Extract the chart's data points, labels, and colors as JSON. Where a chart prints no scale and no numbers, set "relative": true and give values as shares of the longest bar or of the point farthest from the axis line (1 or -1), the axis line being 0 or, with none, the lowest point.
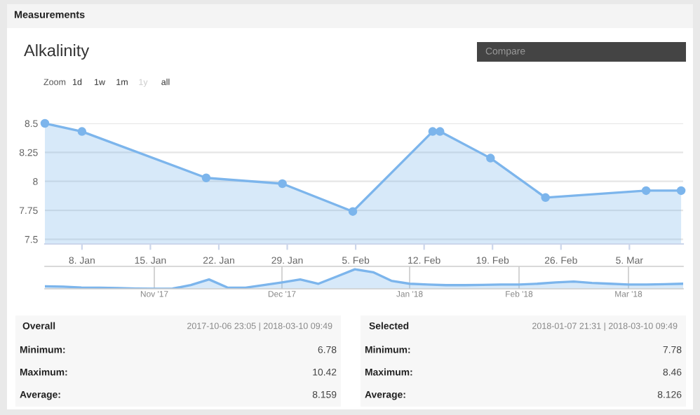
{
  "chart_data": [
    {
      "type": "area",
      "title": "Alkalinity",
      "color": "#7cb5ec",
      "marker": "circle",
      "grid": "y",
      "x": [
        "2018-01-04T05:00",
        "2018-01-08",
        "2018-01-20T17:00",
        "2018-01-28T12:00",
        "2018-02-04T17:00",
        "2018-02-12T21:00",
        "2018-02-13T15:00",
        "2018-02-18T19:00",
        "2018-02-24T10:00",
        "2018-03-06T17:00",
        "2018-03-10T07:00"
      ],
      "values": [
        8.5,
        8.43,
        8.03,
        7.98,
        7.74,
        8.43,
        8.43,
        8.2,
        7.86,
        7.92,
        7.92
      ],
      "xlim": [
        "2018-01-04T05:00",
        "2018-03-10T12:00"
      ],
      "ylim": [
        7.46,
        8.5
      ],
      "xticks": [
        {
          "value": "2018-01-08",
          "label": "8. Jan"
        },
        {
          "value": "2018-01-15",
          "label": "15. Jan"
        },
        {
          "value": "2018-01-22",
          "label": "22. Jan"
        },
        {
          "value": "2018-01-29",
          "label": "29. Jan"
        },
        {
          "value": "2018-02-05",
          "label": "5. Feb"
        },
        {
          "value": "2018-02-12",
          "label": "12. Feb"
        },
        {
          "value": "2018-02-19",
          "label": "19. Feb"
        },
        {
          "value": "2018-02-26",
          "label": "26. Feb"
        },
        {
          "value": "2018-03-05",
          "label": "5. Mar"
        }
      ],
      "yticks": [
        7.5,
        7.75,
        8,
        8.25,
        8.5
      ],
      "annotations": [
        "Measurements",
        "Compare",
        "Zoom",
        "1d",
        "1w",
        "1m",
        "1y",
        "all",
        "Overall",
        "2017-10-06 23:05 | 2018-03-10 09:49",
        "Minimum:",
        "6.78",
        "Maximum:",
        "10.42",
        "Average:",
        "8.159",
        "Selected",
        "2018-01-07 21:31 | 2018-03-10 09:49",
        "Minimum:",
        "7.78",
        "Maximum:",
        "8.46",
        "Average:",
        "8.126"
      ]
    },
    {
      "type": "area",
      "relative": true,
      "color": "#7cb5ec",
      "grid": "x",
      "categories": [
        null,
        null,
        null,
        null,
        null,
        null,
        "Nov '17",
        null,
        null,
        null,
        null,
        null,
        null,
        "Dec '17",
        null,
        null,
        null,
        null,
        null,
        null,
        "Jan '18",
        null,
        null,
        null,
        null,
        null,
        "Feb '18",
        null,
        null,
        null,
        null,
        null,
        "Mar '18",
        null,
        null,
        null
      ],
      "values": [
        0.13,
        0.11,
        0.07,
        0.06,
        0.04,
        0.01,
        0,
        0.01,
        0.19,
        0.48,
        0.07,
        0.06,
        0.19,
        0.33,
        0.48,
        0.26,
        0.63,
        1,
        0.85,
        0.41,
        0.26,
        0.22,
        0.19,
        0.19,
        0.2,
        0.22,
        0.22,
        0.26,
        0.33,
        0.37,
        0.3,
        0.26,
        0.22,
        0.22,
        0.24,
        0.26
      ]
    }
  ]
}
